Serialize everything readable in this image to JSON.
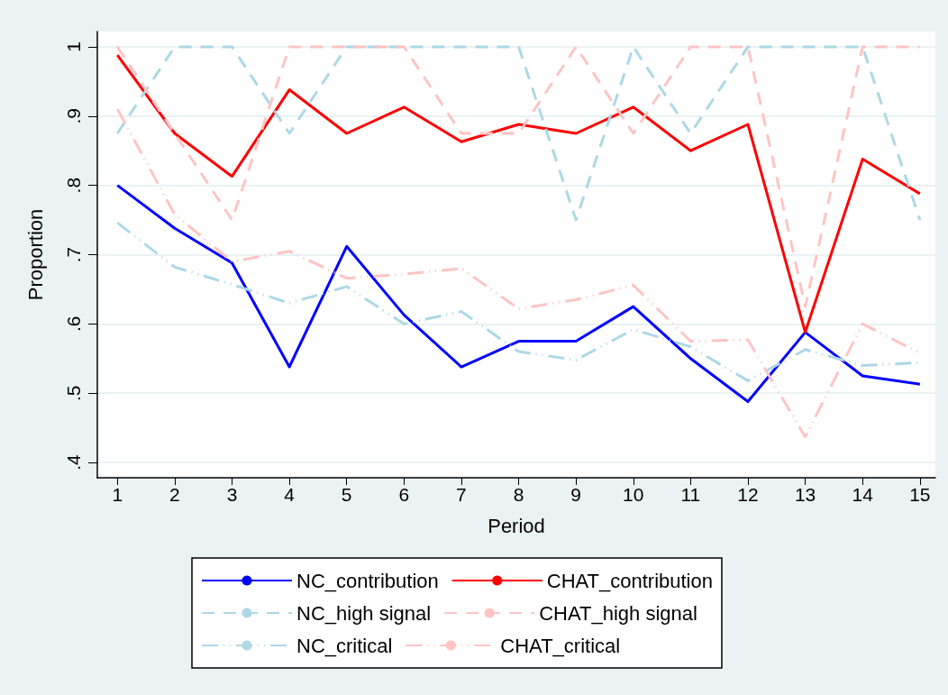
{
  "chart_data": {
    "type": "line",
    "xlabel": "Period",
    "ylabel": "Proportion",
    "x": [
      1,
      2,
      3,
      4,
      5,
      6,
      7,
      8,
      9,
      10,
      11,
      12,
      13,
      14,
      15
    ],
    "xlim": [
      0.65,
      15.27
    ],
    "xticks": [
      1,
      2,
      3,
      4,
      5,
      6,
      7,
      8,
      9,
      10,
      11,
      12,
      13,
      14,
      15
    ],
    "ylim": [
      0.378,
      1.022
    ],
    "yticks": [
      {
        "value": 0.4,
        "label": ".4"
      },
      {
        "value": 0.5,
        "label": ".5"
      },
      {
        "value": 0.6,
        "label": ".6"
      },
      {
        "value": 0.7,
        "label": ".7"
      },
      {
        "value": 0.8,
        "label": ".8"
      },
      {
        "value": 0.9,
        "label": ".9"
      },
      {
        "value": 1,
        "label": "1"
      }
    ],
    "grid": "y",
    "legend": "bottom",
    "marker": "none",
    "series": [
      {
        "name": "NC_contribution",
        "color": "#0000ff",
        "line_style": "solid",
        "values": [
          0.8,
          0.738,
          0.688,
          0.538,
          0.712,
          0.613,
          0.538,
          0.575,
          0.575,
          0.625,
          0.55,
          0.488,
          0.588,
          0.525,
          0.513
        ]
      },
      {
        "name": "CHAT_contribution",
        "color": "#ff0000",
        "line_style": "solid",
        "values": [
          0.988,
          0.875,
          0.813,
          0.938,
          0.875,
          0.913,
          0.863,
          0.888,
          0.875,
          0.913,
          0.85,
          0.888,
          0.588,
          0.838,
          0.788
        ]
      },
      {
        "name": "NC_high signal",
        "color": "#add8e6",
        "line_style": "dashed",
        "values": [
          0.875,
          1,
          1,
          0.875,
          1,
          1,
          1,
          1,
          0.75,
          1,
          0.875,
          1,
          1,
          1,
          0.75
        ]
      },
      {
        "name": "CHAT_high signal",
        "color": "#ffc4c4",
        "line_style": "dashed",
        "values": [
          1,
          0.875,
          0.75,
          1,
          1,
          1,
          0.875,
          0.875,
          1,
          0.875,
          1,
          1,
          0.625,
          1,
          1
        ]
      },
      {
        "name": "NC_critical",
        "color": "#add8e6",
        "line_style": "dashdot",
        "values": [
          0.746,
          0.682,
          0.657,
          0.63,
          0.654,
          0.6,
          0.618,
          0.56,
          0.548,
          0.592,
          0.567,
          0.518,
          0.563,
          0.54,
          0.544
        ]
      },
      {
        "name": "CHAT_critical",
        "color": "#ffc4c4",
        "line_style": "dashdot",
        "values": [
          0.91,
          0.758,
          0.69,
          0.705,
          0.666,
          0.672,
          0.68,
          0.622,
          0.635,
          0.656,
          0.575,
          0.577,
          0.437,
          0.6,
          0.558
        ]
      }
    ]
  }
}
